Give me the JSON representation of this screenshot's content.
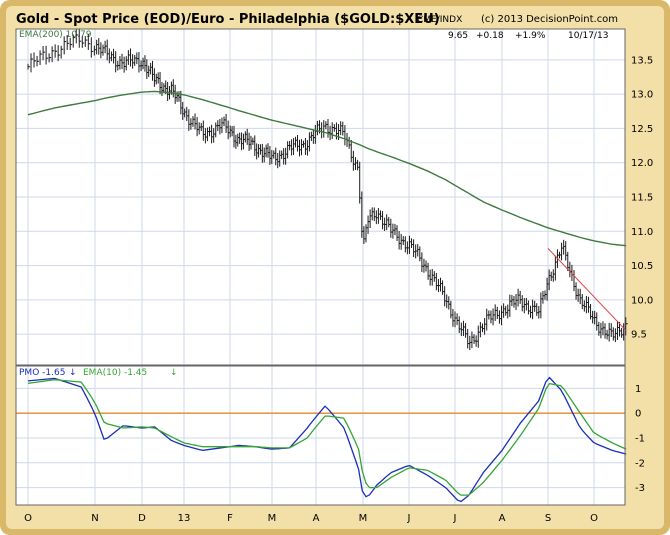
{
  "header": {
    "title": "Gold - Spot Price (EOD)/Euro - Philadelphia ($GOLD:$XEU)",
    "source": "CME/INDX",
    "copyright": "(c) 2013 DecisionPoint.com",
    "last_value": "9.65",
    "change": "+0.18",
    "change_pct": "+1.9%",
    "date": "10/17/13"
  },
  "months": [
    "O",
    "N",
    "D",
    "13",
    "F",
    "M",
    "A",
    "M",
    "J",
    "J",
    "A",
    "S",
    "O"
  ],
  "colors": {
    "frame_outer": "#d9b86a",
    "frame_inner": "#f3dfa8",
    "background": "#ffffff",
    "grid": "#cfd8ea",
    "bars": "#1a1a1a",
    "ema200": "#3e7a3e",
    "trendline": "#e04040",
    "pmo": "#1c2fb5",
    "pmo_signal": "#36a536",
    "zero_line": "#e08a28",
    "axis_text": "#000000"
  },
  "chart_data": [
    {
      "type": "line",
      "name": "price_panel",
      "ylim": [
        9.05,
        13.95
      ],
      "yticks": [
        9.5,
        10.0,
        10.5,
        11.0,
        11.5,
        12.0,
        12.5,
        13.0,
        13.5
      ],
      "ytick_labels": [
        "9.5",
        "10.0",
        "10.5",
        "11.0",
        "11.5",
        "12.0",
        "12.5",
        "13.0",
        "13.5"
      ],
      "x_month_index": [
        0,
        0.4,
        0.8,
        1.2,
        1.6,
        2.0,
        2.3,
        2.7,
        3.0,
        3.4,
        3.8,
        4.2,
        4.6,
        5.0,
        5.4,
        5.8,
        6.2,
        6.6,
        6.9,
        7.0,
        7.1,
        7.3,
        7.6,
        8.0,
        8.4,
        8.8,
        9.1,
        9.3,
        9.6,
        10.0,
        10.4,
        10.8,
        11.0,
        11.3,
        11.7,
        12.0,
        12.4,
        12.7
      ],
      "series": [
        {
          "name": "Gold - Spot Price (EOD)/Euro",
          "values": [
            13.4,
            13.65,
            13.8,
            13.6,
            13.45,
            13.5,
            13.2,
            13.05,
            12.75,
            12.4,
            12.55,
            12.35,
            12.25,
            12.05,
            12.2,
            12.3,
            12.55,
            12.4,
            11.9,
            10.7,
            11.15,
            11.3,
            11.0,
            10.8,
            10.45,
            10.0,
            9.6,
            9.35,
            9.65,
            9.85,
            10.0,
            9.8,
            10.3,
            10.75,
            10.0,
            9.7,
            9.45,
            9.65
          ]
        },
        {
          "name": "EMA(200)",
          "label": "EMA(200) 10.79",
          "values": [
            12.7,
            12.8,
            12.87,
            12.94,
            12.99,
            13.03,
            13.04,
            13.02,
            12.99,
            12.92,
            12.84,
            12.76,
            12.69,
            12.62,
            12.56,
            12.5,
            12.44,
            12.35,
            12.27,
            12.24,
            12.21,
            12.16,
            12.09,
            11.99,
            11.88,
            11.75,
            11.63,
            11.55,
            11.43,
            11.31,
            11.2,
            11.1,
            11.05,
            10.99,
            10.91,
            10.86,
            10.81,
            10.79
          ]
        }
      ],
      "trendline": {
        "x_month_index": [
          11.0,
          12.7
        ],
        "values": [
          10.75,
          9.55
        ]
      }
    },
    {
      "type": "line",
      "name": "pmo_panel",
      "ylim": [
        -3.7,
        1.9
      ],
      "yticks": [
        -3,
        -2,
        -1,
        0,
        1
      ],
      "ytick_labels": [
        "-3",
        "-2",
        "-1",
        "0",
        "1"
      ],
      "x_month_index": [
        0,
        0.4,
        0.8,
        1.2,
        1.6,
        2.0,
        2.3,
        2.7,
        3.0,
        3.4,
        3.8,
        4.2,
        4.6,
        5.0,
        5.4,
        5.8,
        6.2,
        6.6,
        6.9,
        7.0,
        7.1,
        7.3,
        7.6,
        8.0,
        8.4,
        8.8,
        9.1,
        9.3,
        9.6,
        10.0,
        10.4,
        10.8,
        11.0,
        11.3,
        11.7,
        12.0,
        12.4,
        12.7
      ],
      "series": [
        {
          "name": "PMO",
          "label": "PMO -1.65",
          "values": [
            1.3,
            1.4,
            1.05,
            -1.1,
            -0.5,
            -0.6,
            -0.55,
            -1.1,
            -1.3,
            -1.5,
            -1.4,
            -1.3,
            -1.35,
            -1.45,
            -1.4,
            -0.6,
            0.3,
            -0.6,
            -2.2,
            -3.3,
            -3.4,
            -2.9,
            -2.4,
            -2.1,
            -2.5,
            -3.0,
            -3.6,
            -3.3,
            -2.4,
            -1.5,
            -0.4,
            0.5,
            1.5,
            0.9,
            -0.6,
            -1.2,
            -1.5,
            -1.65
          ]
        },
        {
          "name": "EMA(10)",
          "label": "EMA(10) -1.45",
          "values": [
            1.2,
            1.35,
            1.25,
            -0.4,
            -0.6,
            -0.55,
            -0.6,
            -0.95,
            -1.2,
            -1.35,
            -1.35,
            -1.35,
            -1.35,
            -1.4,
            -1.4,
            -1.0,
            -0.1,
            -0.2,
            -1.4,
            -2.5,
            -3.0,
            -3.0,
            -2.6,
            -2.2,
            -2.3,
            -2.7,
            -3.3,
            -3.3,
            -2.8,
            -1.9,
            -0.9,
            0.2,
            1.2,
            1.1,
            0.0,
            -0.8,
            -1.2,
            -1.45
          ]
        }
      ]
    }
  ]
}
